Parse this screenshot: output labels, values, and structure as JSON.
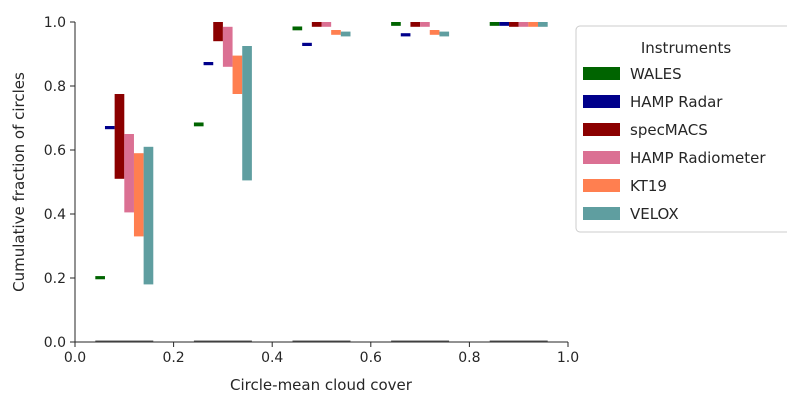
{
  "chart_data": {
    "type": "bar",
    "title": "",
    "xlabel": "Circle-mean cloud cover",
    "ylabel": "Cumulative fraction of circles",
    "xlim": [
      0.0,
      1.0
    ],
    "ylim": [
      0.0,
      1.0
    ],
    "xticks": [
      "0.0",
      "0.2",
      "0.4",
      "0.6",
      "0.8",
      "1.0"
    ],
    "yticks": [
      "0.0",
      "0.2",
      "0.4",
      "0.6",
      "0.8",
      "1.0"
    ],
    "grid": false,
    "legend": {
      "title": "Instruments",
      "placement": "right"
    },
    "bins": [
      {
        "from": 0.0,
        "to": 0.2
      },
      {
        "from": 0.2,
        "to": 0.4
      },
      {
        "from": 0.4,
        "to": 0.6
      },
      {
        "from": 0.6,
        "to": 0.8
      },
      {
        "from": 0.8,
        "to": 1.0
      }
    ],
    "series": [
      {
        "name": "WALES",
        "color": "#006400",
        "ranges": [
          [
            0.196,
            0.206
          ],
          [
            0.674,
            0.686
          ],
          [
            0.974,
            0.986
          ],
          [
            0.988,
            1.0
          ],
          [
            0.988,
            1.0
          ]
        ]
      },
      {
        "name": "HAMP Radar",
        "color": "#00008B",
        "ranges": [
          [
            0.665,
            0.675
          ],
          [
            0.865,
            0.875
          ],
          [
            0.925,
            0.935
          ],
          [
            0.955,
            0.965
          ],
          [
            0.988,
            1.0
          ]
        ]
      },
      {
        "name": "specMACS",
        "color": "#8B0000",
        "ranges": [
          [
            0.51,
            0.775
          ],
          [
            0.94,
            1.0
          ],
          [
            0.985,
            1.0
          ],
          [
            0.985,
            1.0
          ],
          [
            0.985,
            1.0
          ]
        ]
      },
      {
        "name": "HAMP Radiometer",
        "color": "#DB7093",
        "ranges": [
          [
            0.405,
            0.65
          ],
          [
            0.86,
            0.985
          ],
          [
            0.985,
            1.0
          ],
          [
            0.985,
            1.0
          ],
          [
            0.985,
            1.0
          ]
        ]
      },
      {
        "name": "KT19",
        "color": "#FF7F50",
        "ranges": [
          [
            0.33,
            0.59
          ],
          [
            0.775,
            0.895
          ],
          [
            0.96,
            0.975
          ],
          [
            0.96,
            0.975
          ],
          [
            0.985,
            1.0
          ]
        ]
      },
      {
        "name": "VELOX",
        "color": "#5F9EA0",
        "ranges": [
          [
            0.18,
            0.61
          ],
          [
            0.505,
            0.925
          ],
          [
            0.955,
            0.97
          ],
          [
            0.955,
            0.97
          ],
          [
            0.985,
            1.0
          ]
        ]
      }
    ]
  }
}
